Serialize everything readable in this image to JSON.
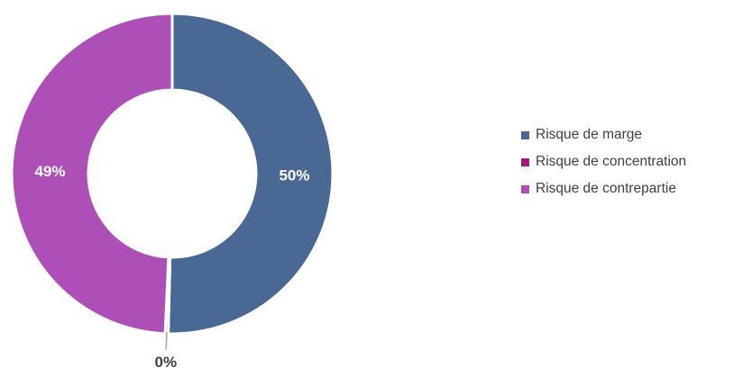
{
  "chart_data": {
    "type": "pie",
    "title": "",
    "donut": true,
    "categories": [
      "Risque de marge",
      "Risque de concentration",
      "Risque de contrepartie"
    ],
    "values": [
      50.4,
      0.3,
      49.3
    ],
    "data_labels": [
      "50%",
      "0%",
      "49%"
    ],
    "colors": [
      "#4a6894",
      "#a3197f",
      "#ad4fb7"
    ],
    "label_colors": [
      "#ffffff",
      "#404040",
      "#ffffff"
    ],
    "legend_position": "right"
  },
  "legend": {
    "items": [
      {
        "label": "Risque de marge",
        "color": "#4a6894"
      },
      {
        "label": "Risque de concentration",
        "color": "#a3197f"
      },
      {
        "label": "Risque de contrepartie",
        "color": "#ad4fb7"
      }
    ]
  }
}
